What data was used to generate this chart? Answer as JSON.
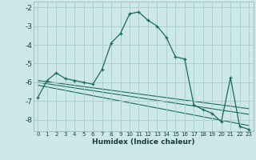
{
  "xlabel": "Humidex (Indice chaleur)",
  "bg_color": "#cce8e8",
  "grid_color": "#aacccc",
  "line_color": "#1a6b5a",
  "xlim": [
    -0.5,
    23.5
  ],
  "ylim": [
    -8.6,
    -1.7
  ],
  "xticks": [
    0,
    1,
    2,
    3,
    4,
    5,
    6,
    7,
    8,
    9,
    10,
    11,
    12,
    13,
    14,
    15,
    16,
    17,
    18,
    19,
    20,
    21,
    22,
    23
  ],
  "yticks": [
    -8,
    -7,
    -6,
    -5,
    -4,
    -3,
    -2
  ],
  "series": [
    [
      0,
      -6.8
    ],
    [
      1,
      -5.9
    ],
    [
      2,
      -5.5
    ],
    [
      3,
      -5.8
    ],
    [
      4,
      -5.9
    ],
    [
      5,
      -6.0
    ],
    [
      6,
      -6.1
    ],
    [
      7,
      -5.3
    ],
    [
      8,
      -3.9
    ],
    [
      9,
      -3.4
    ],
    [
      10,
      -2.35
    ],
    [
      11,
      -2.25
    ],
    [
      12,
      -2.7
    ],
    [
      13,
      -3.0
    ],
    [
      14,
      -3.6
    ],
    [
      15,
      -4.65
    ],
    [
      16,
      -4.75
    ],
    [
      17,
      -7.2
    ],
    [
      18,
      -7.45
    ],
    [
      19,
      -7.65
    ],
    [
      20,
      -8.1
    ],
    [
      21,
      -5.75
    ],
    [
      22,
      -8.35
    ],
    [
      23,
      -8.5
    ]
  ],
  "trend_lines": [
    [
      [
        0,
        -5.9
      ],
      [
        23,
        -7.4
      ]
    ],
    [
      [
        0,
        -6.0
      ],
      [
        23,
        -7.7
      ]
    ],
    [
      [
        0,
        -6.15
      ],
      [
        23,
        -8.3
      ]
    ]
  ]
}
